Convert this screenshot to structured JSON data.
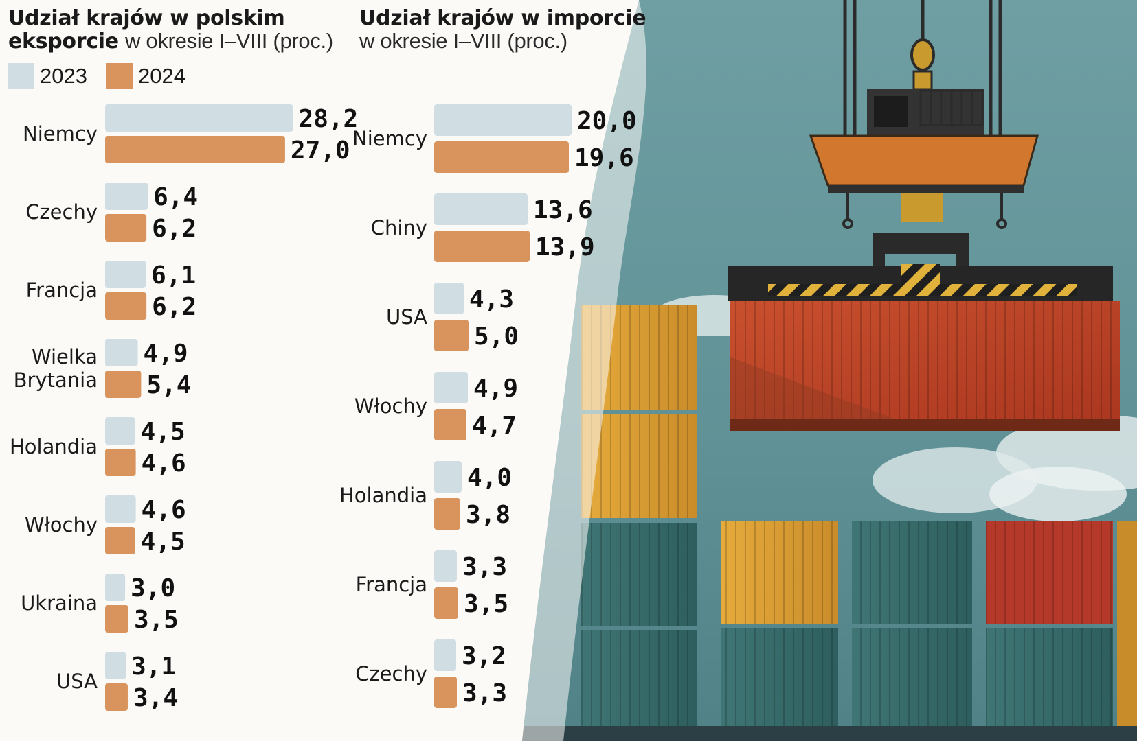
{
  "colors": {
    "y2023": "#d0dde3",
    "y2024": "#d9935d",
    "text": "#1a1a1a"
  },
  "legend": [
    {
      "label": "2023",
      "color": "#d0dde3"
    },
    {
      "label": "2024",
      "color": "#d9935d"
    }
  ],
  "export_title": {
    "bold_1": "Udział krajów w polskim",
    "bold_2": "eksporcie",
    "light": "w okresie I–VIII (proc.)"
  },
  "import_title": {
    "bold_1": "Udział krajów w imporcie",
    "light": "w okresie I–VIII (proc.)"
  },
  "chart_data": [
    {
      "type": "bar",
      "orientation": "horizontal",
      "title": "Udział krajów w polskim eksporcie w okresie I–VIII (proc.)",
      "categories": [
        [
          "Niemcy"
        ],
        [
          "Czechy"
        ],
        [
          "Francja"
        ],
        [
          "Wielka",
          "Brytania"
        ],
        [
          "Holandia"
        ],
        [
          "Włochy"
        ],
        [
          "Ukraina"
        ],
        [
          "USA"
        ]
      ],
      "series": [
        {
          "name": "2023",
          "values": [
            28.2,
            6.4,
            6.1,
            4.9,
            4.5,
            4.6,
            3.0,
            3.1
          ],
          "labels": [
            "28,2",
            "6,4",
            "6,1",
            "4,9",
            "4,5",
            "4,6",
            "3,0",
            "3,1"
          ]
        },
        {
          "name": "2024",
          "values": [
            27.0,
            6.2,
            6.2,
            5.4,
            4.6,
            4.5,
            3.5,
            3.4
          ],
          "labels": [
            "27,0",
            "6,2",
            "6,2",
            "5,4",
            "4,6",
            "4,5",
            "3,5",
            "3,4"
          ]
        }
      ],
      "unit": "proc.",
      "grid": false
    },
    {
      "type": "bar",
      "orientation": "horizontal",
      "title": "Udział krajów w imporcie w okresie I–VIII (proc.)",
      "categories": [
        [
          "Niemcy"
        ],
        [
          "Chiny"
        ],
        [
          "USA"
        ],
        [
          "Włochy"
        ],
        [
          "Holandia"
        ],
        [
          "Francja"
        ],
        [
          "Czechy"
        ]
      ],
      "series": [
        {
          "name": "2023",
          "values": [
            20.0,
            13.6,
            4.3,
            4.9,
            4.0,
            3.3,
            3.2
          ],
          "labels": [
            "20,0",
            "13,6",
            "4,3",
            "4,9",
            "4,0",
            "3,3",
            "3,2"
          ]
        },
        {
          "name": "2024",
          "values": [
            19.6,
            13.9,
            5.0,
            4.7,
            3.8,
            3.5,
            3.3
          ],
          "labels": [
            "19,6",
            "13,9",
            "5,0",
            "4,7",
            "3,8",
            "3,5",
            "3,3"
          ]
        }
      ],
      "unit": "proc.",
      "grid": false
    }
  ]
}
